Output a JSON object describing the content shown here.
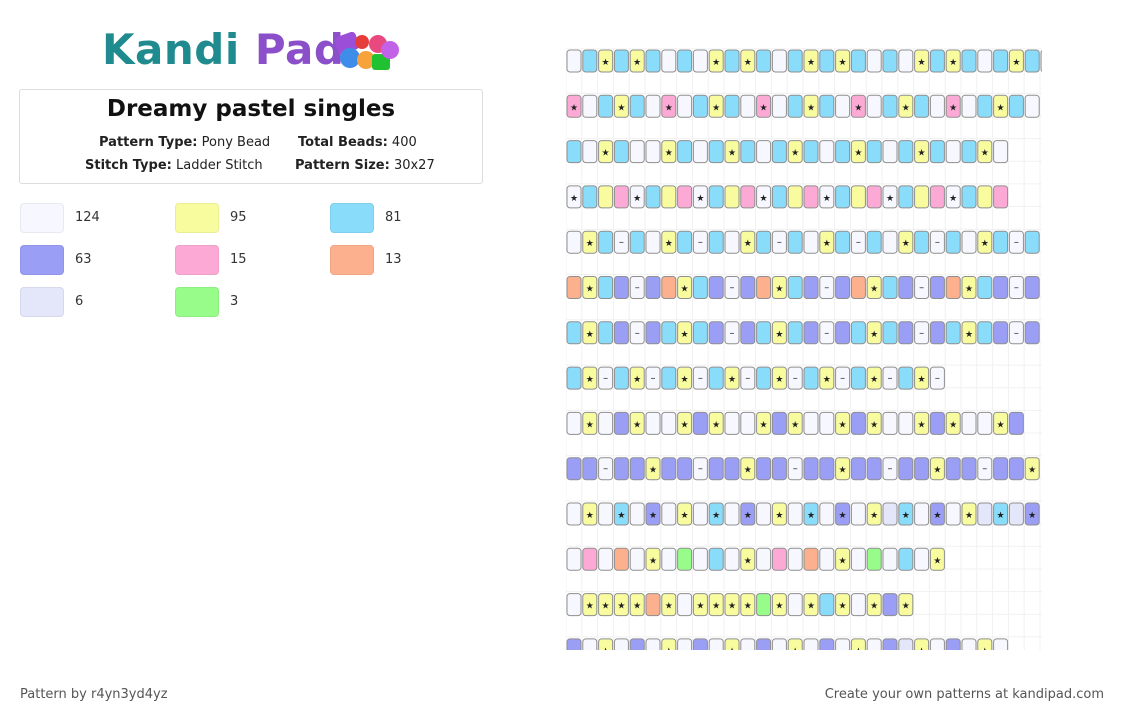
{
  "brand": {
    "name_part1": "Kandi",
    "name_part2": " Pad"
  },
  "pattern": {
    "title": "Dreamy pastel singles",
    "pattern_type_label": "Pattern Type:",
    "pattern_type": "Pony Bead",
    "total_beads_label": "Total Beads:",
    "total_beads": "400",
    "stitch_type_label": "Stitch Type:",
    "stitch_type": "Ladder Stitch",
    "pattern_size_label": "Pattern Size:",
    "pattern_size": "30x27"
  },
  "legend": [
    {
      "color": "#f7f8ff",
      "count": "124"
    },
    {
      "color": "#f9fc9e",
      "count": "95"
    },
    {
      "color": "#8adcfb",
      "count": "81"
    },
    {
      "color": "#9a9ef5",
      "count": "63"
    },
    {
      "color": "#fcaad5",
      "count": "15"
    },
    {
      "color": "#fdb08e",
      "count": "13"
    },
    {
      "color": "#e4e6fa",
      "count": "6"
    },
    {
      "color": "#97fc8a",
      "count": "3"
    }
  ],
  "bead_key": {
    "W": "#f7f8ff",
    "Y": "#f9fc9e",
    "B": "#8adcfb",
    "P": "#9a9ef5",
    "K": "#fcaad5",
    "O": "#fdb08e",
    "L": "#e4e6fa",
    "G": "#97fc8a"
  },
  "bead_rows": [
    "W B Y* B Y* B W B W Y* B Y* B W B Y* B Y* B W B W Y* B Y* B W B Y* B Y* B",
    "K* W B Y* B W K* W B Y* B W K* W B Y* B W K* W B Y* B W K* W B Y* B W",
    "B W Y* B W W Y* B W B Y* B W B Y* B W B Y* B W B Y* B W B Y* W",
    "W* B Y K W* B Y K W* B Y K W* B Y K W* B Y K W* B Y K W* B Y K",
    "W Y* B W- B W Y* B W- B W Y* B W- B W Y* B W- B W Y* B W- B W Y* B W- B",
    "O Y* B P W- P O Y* B P W- P O Y* B P W- P O Y* B P W- P O Y* B P W- P",
    "B Y* B P W- P B Y* B P W- P B Y* B P W- P B Y* B P W- P B Y* B P W- P",
    "B Y* W- B Y* W- B Y* W- B Y* W- B Y* W- B Y* W- B Y* W- B Y* W-",
    "W Y* W P Y* W W Y* P Y* W W Y* P Y* W W Y* P Y* W W Y* P Y* W W Y* P",
    "P P W- P P Y* P P W- P P Y* P P W- P P Y* P P W- P P Y* P P W- P P Y*",
    "W Y* W B* W P* W Y* W B* W P* W Y* W B* W P* W Y* L B* W P* W Y* L B* L P*",
    "W K W O W Y* W G W B W Y* W K W O W Y* W G W B W Y*",
    "W Y* Y* Y* Y* O Y* W Y* Y* Y* Y* G Y* W Y* B Y* W Y* P Y*",
    "P W Y* W P W Y* W P W Y* W P W Y* W P W Y* W P L Y* W P W Y* W"
  ],
  "footer": {
    "credit": "Pattern by r4yn3yd4yz",
    "promo": "Create your own patterns at kandipad.com"
  }
}
